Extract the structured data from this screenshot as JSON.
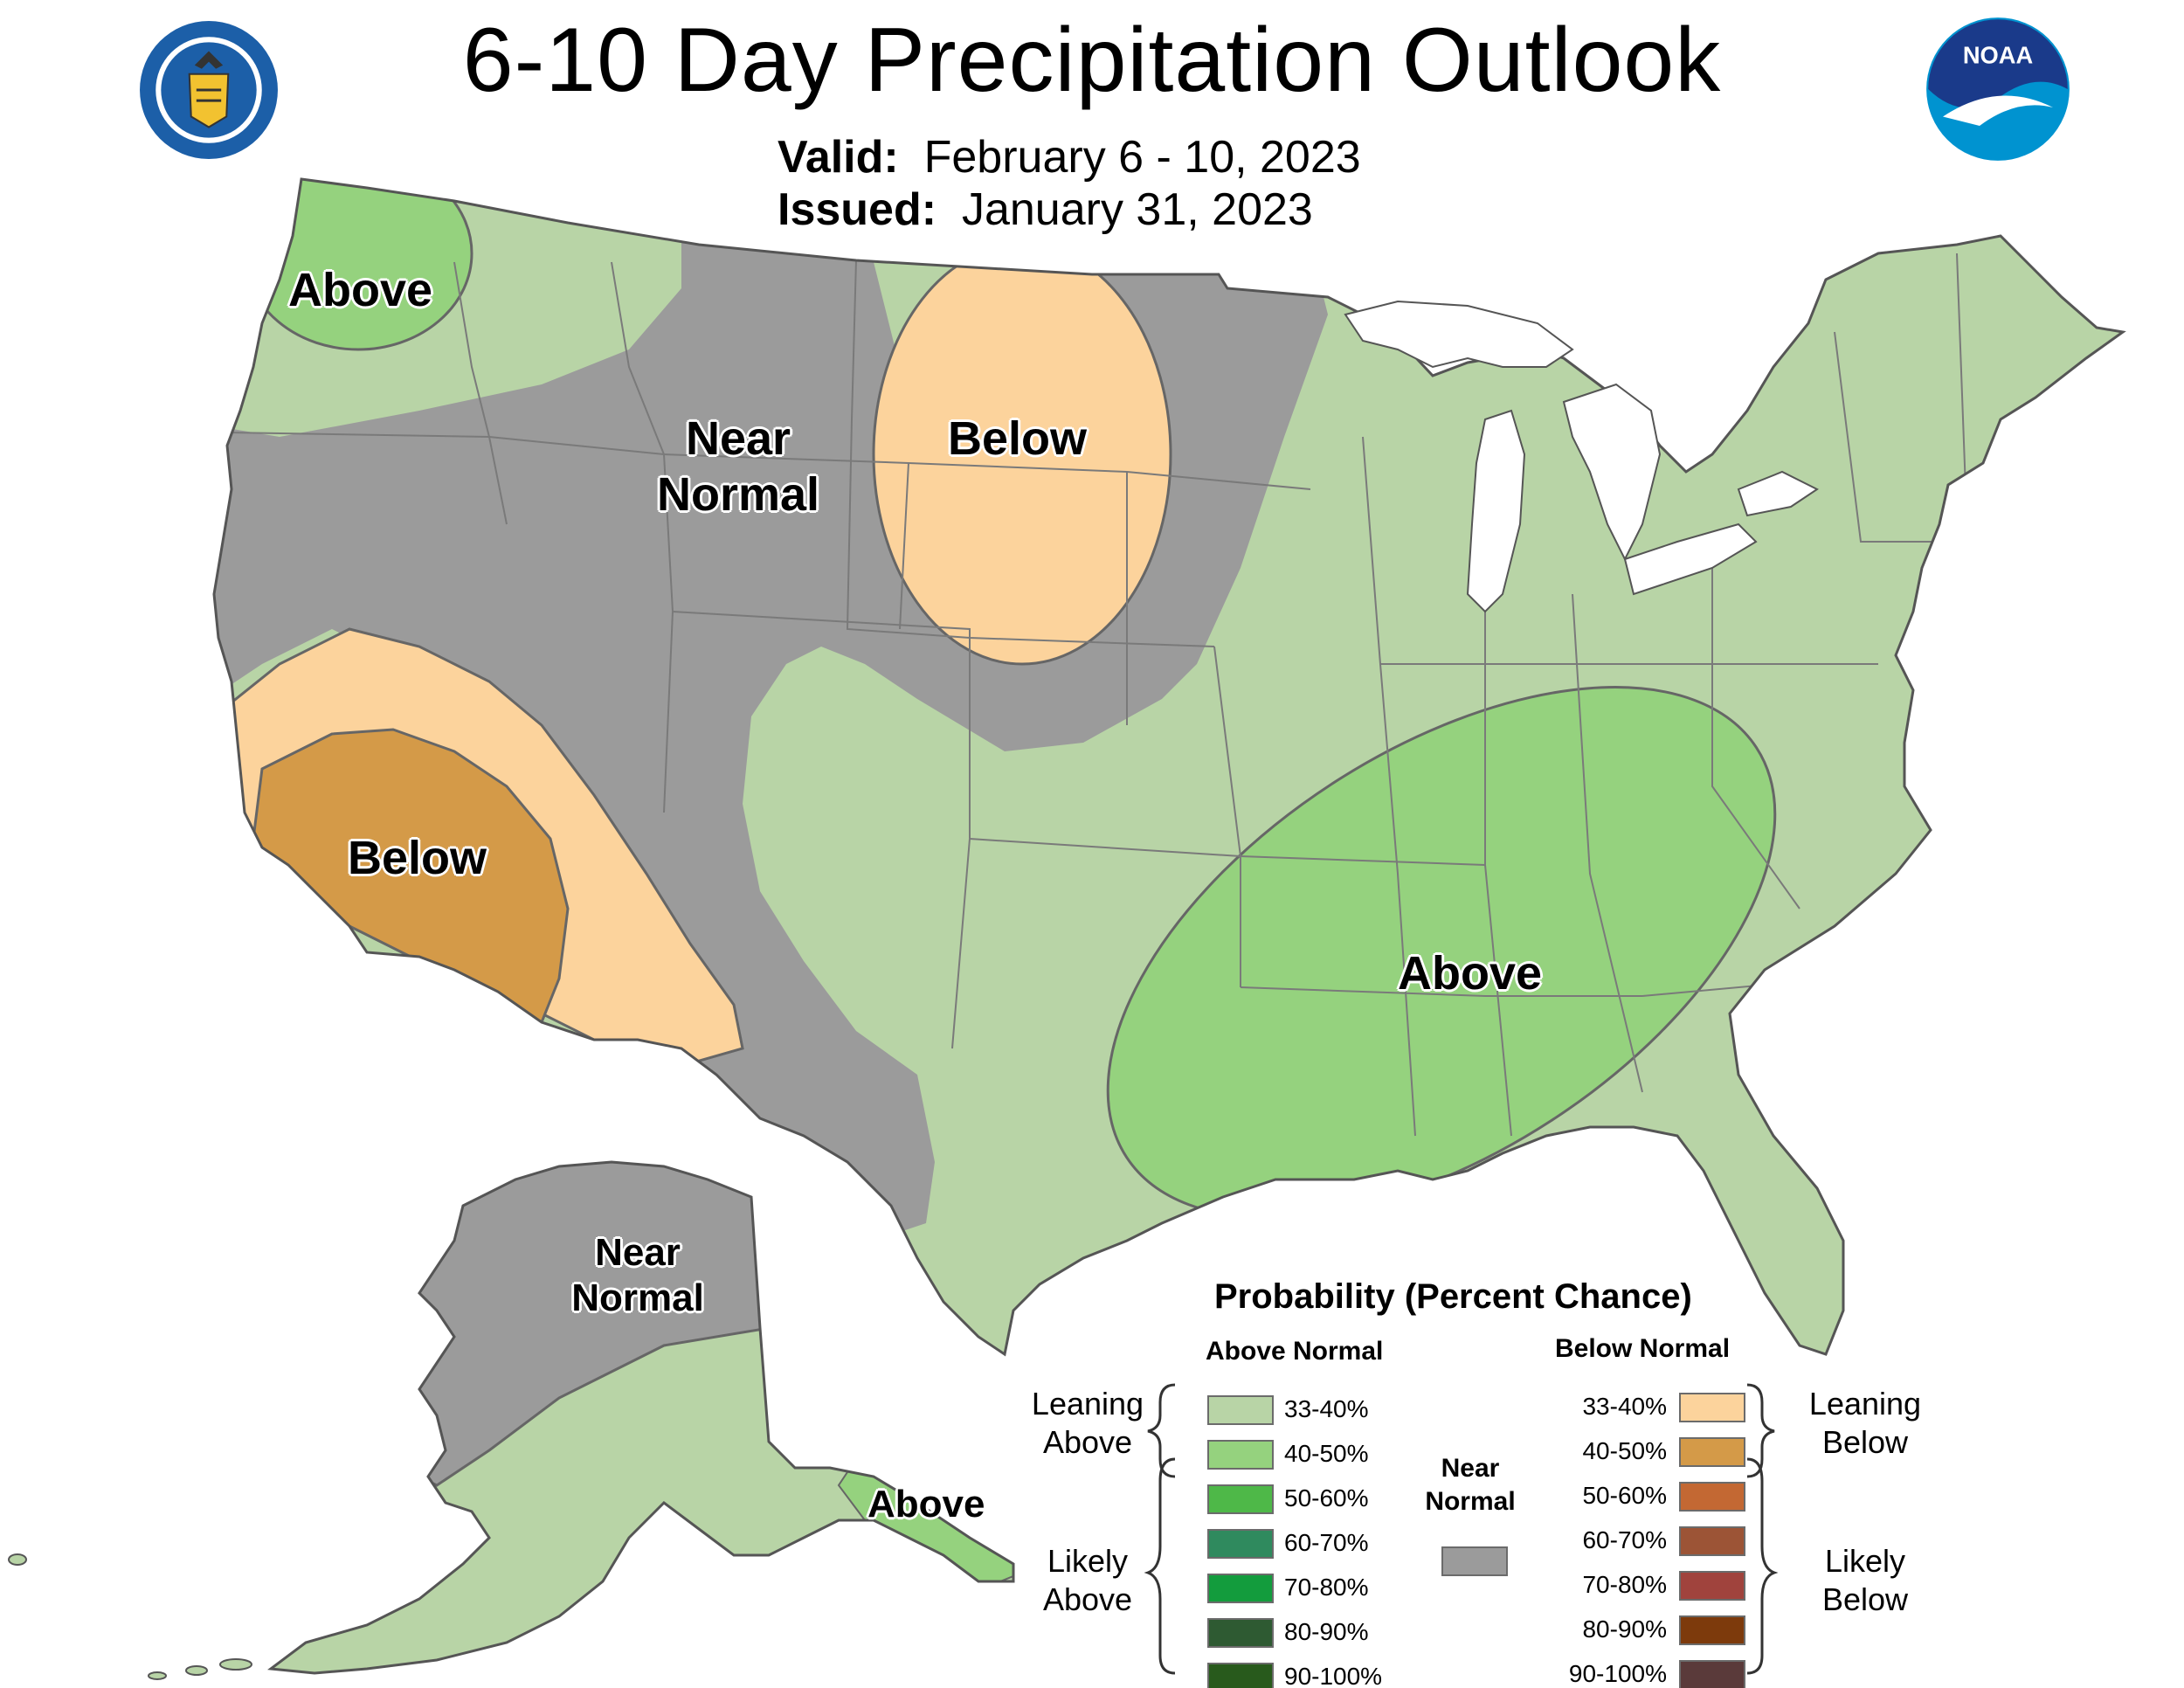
{
  "header": {
    "title": "6-10 Day Precipitation Outlook",
    "valid_label": "Valid:",
    "valid_value": "February 6 - 10, 2023",
    "issued_label": "Issued:",
    "issued_value": "January 31, 2023"
  },
  "logos": {
    "commerce_seal": "Department of Commerce seal",
    "noaa": "NOAA"
  },
  "colors": {
    "leaning_above": "#b8d4a6",
    "above_40_50": "#95d27e",
    "near_normal": "#9b9b9b",
    "leaning_below": "#fcd39c",
    "below_40_50": "#d49a48",
    "water": "#ffffff",
    "border": "#666666"
  },
  "map_labels": {
    "pnw_above": "Above",
    "near_normal_line1": "Near",
    "near_normal_line2": "Normal",
    "northern_plains_below": "Below",
    "california_below": "Below",
    "southeast_above": "Above",
    "alaska_near_line1": "Near",
    "alaska_near_line2": "Normal",
    "alaska_above": "Above"
  },
  "legend": {
    "title": "Probability (Percent Chance)",
    "above_header": "Above Normal",
    "below_header": "Below Normal",
    "near_line1": "Near",
    "near_line2": "Normal",
    "near_color": "#9b9b9b",
    "leaning_above_line1": "Leaning",
    "leaning_above_line2": "Above",
    "likely_above_line1": "Likely",
    "likely_above_line2": "Above",
    "leaning_below_line1": "Leaning",
    "leaning_below_line2": "Below",
    "likely_below_line1": "Likely",
    "likely_below_line2": "Below",
    "above": [
      {
        "label": "33-40%",
        "color": "#b8d4a6"
      },
      {
        "label": "40-50%",
        "color": "#95d27e"
      },
      {
        "label": "50-60%",
        "color": "#4eb848"
      },
      {
        "label": "60-70%",
        "color": "#2f8a5e"
      },
      {
        "label": "70-80%",
        "color": "#139c3d"
      },
      {
        "label": "80-90%",
        "color": "#2e5a32"
      },
      {
        "label": "90-100%",
        "color": "#285a1c"
      }
    ],
    "below": [
      {
        "label": "33-40%",
        "color": "#fcd39c"
      },
      {
        "label": "40-50%",
        "color": "#d49a48"
      },
      {
        "label": "50-60%",
        "color": "#c36833"
      },
      {
        "label": "60-70%",
        "color": "#9c5436"
      },
      {
        "label": "70-80%",
        "color": "#a0433d"
      },
      {
        "label": "80-90%",
        "color": "#7d3a0c"
      },
      {
        "label": "90-100%",
        "color": "#5a3a3a"
      }
    ]
  }
}
